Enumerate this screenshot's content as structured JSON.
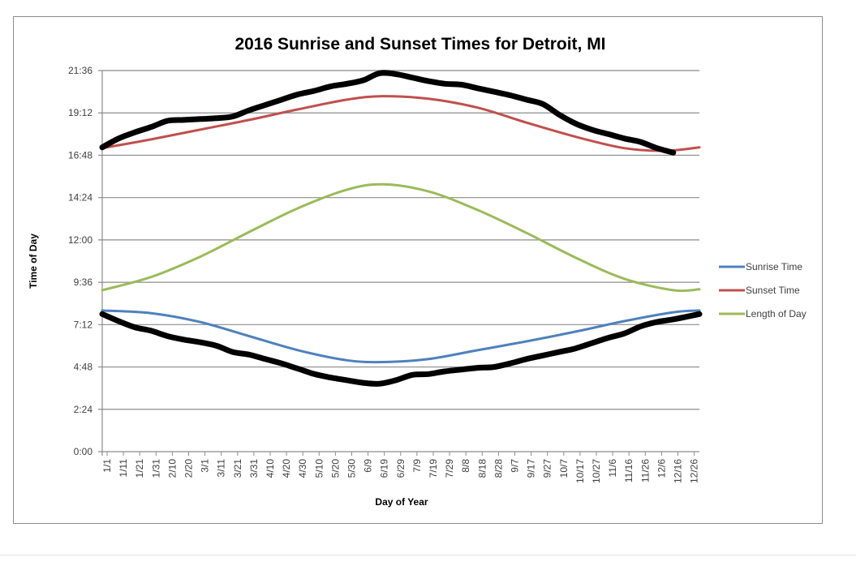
{
  "chart_data": {
    "type": "line",
    "title": "2016 Sunrise and Sunset Times for Detroit, MI",
    "xlabel": "Day of Year",
    "ylabel": "Time of Day",
    "x_tick_labels": [
      "1/1",
      "1/11",
      "1/21",
      "1/31",
      "2/10",
      "2/20",
      "3/1",
      "3/11",
      "3/21",
      "3/31",
      "4/10",
      "4/20",
      "4/30",
      "5/10",
      "5/20",
      "5/30",
      "6/9",
      "6/19",
      "6/29",
      "7/9",
      "7/19",
      "7/29",
      "8/8",
      "8/18",
      "8/28",
      "9/7",
      "9/17",
      "9/27",
      "10/7",
      "10/17",
      "10/27",
      "11/6",
      "11/16",
      "11/26",
      "12/6",
      "12/16",
      "12/26"
    ],
    "y_tick_labels": [
      "0:00",
      "2:24",
      "4:48",
      "7:12",
      "9:36",
      "12:00",
      "14:24",
      "16:48",
      "19:12",
      "21:36"
    ],
    "ylim_hours": [
      0,
      21.6
    ],
    "xlim_days": [
      0,
      366
    ],
    "grid": "horizontal",
    "legend_position": "right",
    "series": [
      {
        "name": "Sunrise Time",
        "color": "#4f81bd",
        "x_days": [
          0,
          30,
          60,
          90,
          120,
          150,
          172,
          200,
          230,
          260,
          290,
          320,
          350,
          366
        ],
        "y_hours": [
          8.0,
          7.85,
          7.35,
          6.55,
          5.75,
          5.18,
          5.08,
          5.25,
          5.75,
          6.25,
          6.8,
          7.4,
          7.9,
          8.0
        ]
      },
      {
        "name": "Sunset Time",
        "color": "#c0504d",
        "x_days": [
          0,
          30,
          60,
          90,
          120,
          150,
          172,
          200,
          230,
          260,
          290,
          320,
          345,
          366
        ],
        "y_hours": [
          17.2,
          17.7,
          18.25,
          18.8,
          19.4,
          19.95,
          20.15,
          20.0,
          19.5,
          18.65,
          17.85,
          17.2,
          17.05,
          17.25
        ]
      },
      {
        "name": "Length of Day",
        "color": "#9bbb59",
        "x_days": [
          0,
          30,
          60,
          90,
          120,
          150,
          172,
          200,
          230,
          260,
          290,
          320,
          350,
          366
        ],
        "y_hours": [
          9.15,
          9.9,
          11.05,
          12.45,
          13.8,
          14.85,
          15.15,
          14.75,
          13.7,
          12.4,
          11.0,
          9.8,
          9.15,
          9.2
        ]
      }
    ],
    "annotations": [
      {
        "name": "hand-drawn-sunset-trace",
        "color": "#000000",
        "x_days": [
          0,
          10,
          20,
          30,
          40,
          50,
          60,
          70,
          80,
          90,
          100,
          110,
          120,
          130,
          140,
          150,
          160,
          170,
          180,
          190,
          200,
          210,
          220,
          230,
          240,
          250,
          260,
          270,
          280,
          290,
          300,
          310,
          320,
          330,
          340,
          350
        ],
        "y_hours": [
          17.25,
          17.75,
          18.1,
          18.4,
          18.75,
          18.8,
          18.85,
          18.9,
          19.0,
          19.35,
          19.65,
          19.95,
          20.25,
          20.45,
          20.7,
          20.85,
          21.05,
          21.45,
          21.4,
          21.2,
          21.0,
          20.85,
          20.8,
          20.6,
          20.4,
          20.2,
          19.95,
          19.7,
          19.1,
          18.6,
          18.25,
          18.0,
          17.75,
          17.55,
          17.2,
          16.95
        ]
      },
      {
        "name": "hand-drawn-sunrise-trace",
        "color": "#000000",
        "x_days": [
          0,
          10,
          20,
          30,
          40,
          50,
          60,
          70,
          80,
          90,
          100,
          110,
          120,
          130,
          140,
          150,
          160,
          170,
          180,
          190,
          200,
          210,
          220,
          230,
          240,
          250,
          260,
          270,
          280,
          290,
          300,
          310,
          320,
          330,
          340,
          350,
          366
        ],
        "y_hours": [
          7.8,
          7.4,
          7.05,
          6.85,
          6.55,
          6.35,
          6.2,
          6.0,
          5.65,
          5.5,
          5.25,
          5.0,
          4.7,
          4.4,
          4.2,
          4.05,
          3.9,
          3.85,
          4.05,
          4.35,
          4.4,
          4.55,
          4.65,
          4.75,
          4.8,
          5.0,
          5.25,
          5.45,
          5.65,
          5.85,
          6.15,
          6.45,
          6.7,
          7.1,
          7.35,
          7.5,
          7.8
        ]
      }
    ]
  }
}
